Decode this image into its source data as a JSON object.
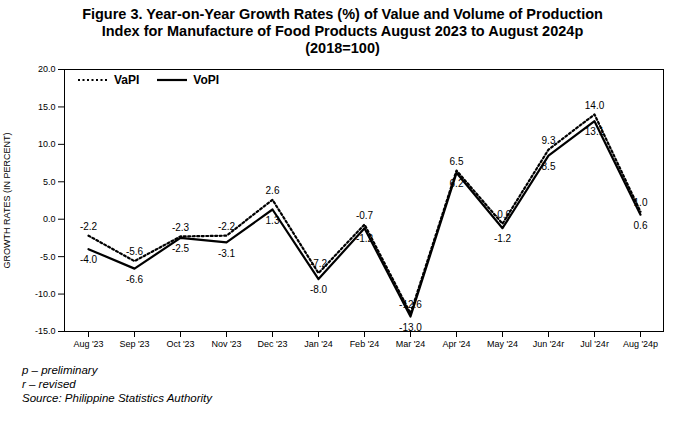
{
  "chart_data": {
    "type": "line",
    "title": "Figure 3. Year-on-Year Growth Rates (%) of Value and Volume of Production Index for Manufacture of Food Products August 2023 to August 2024p (2018=100)",
    "y_label": "GROWTH RATES (IN PERCENT)",
    "caption": [
      "p – preliminary",
      "r – revised",
      "Source: Philippine Statistics Authority"
    ],
    "categories": [
      "Aug '23",
      "Sep '23",
      "Oct '23",
      "Nov '23",
      "Dec '23",
      "Jan '24",
      "Feb '24",
      "Mar '24",
      "Apr '24",
      "May '24",
      "Jun '24r",
      "Jul '24r",
      "Aug '24p"
    ],
    "series": [
      {
        "name": "VaPI",
        "color": "#000000",
        "line_style": "dotted",
        "values": [
          -2.2,
          -5.6,
          -2.3,
          -2.2,
          2.6,
          -7.2,
          -0.7,
          -12.6,
          6.5,
          -0.6,
          9.3,
          14.0,
          1.0
        ],
        "value_labels": [
          "-2.2",
          "-5.6",
          "-2.3",
          "-2.2",
          "2.6",
          "-7.2",
          "-0.7",
          "-12.6",
          "6.5",
          "-0.6",
          "9.3",
          "14.0",
          "1.0"
        ]
      },
      {
        "name": "VoPI",
        "color": "#000000",
        "line_style": "solid",
        "values": [
          -4.0,
          -6.6,
          -2.5,
          -3.1,
          1.3,
          -8.0,
          -1.2,
          -13.0,
          6.2,
          -1.2,
          8.5,
          13.1,
          0.6
        ],
        "value_labels": [
          "-4.0",
          "-6.6",
          "-2.5",
          "-3.1",
          "1.3",
          "-8.0",
          "-1.2",
          "-13.0",
          "6.2",
          "-1.2",
          "8.5",
          "13.1",
          "0.6"
        ]
      }
    ],
    "ylim": [
      -15,
      20
    ],
    "yticks": [
      {
        "value": -15,
        "label": "-15.0"
      },
      {
        "value": -10,
        "label": "-10.0"
      },
      {
        "value": -5,
        "label": "-5.0"
      },
      {
        "value": 0,
        "label": "0.0"
      },
      {
        "value": 5,
        "label": "5.0"
      },
      {
        "value": 10,
        "label": "10.0"
      },
      {
        "value": 15,
        "label": "15.0"
      },
      {
        "value": 20,
        "label": "20.0"
      }
    ],
    "grid": false,
    "legend": "top-left",
    "data_labels": true
  }
}
